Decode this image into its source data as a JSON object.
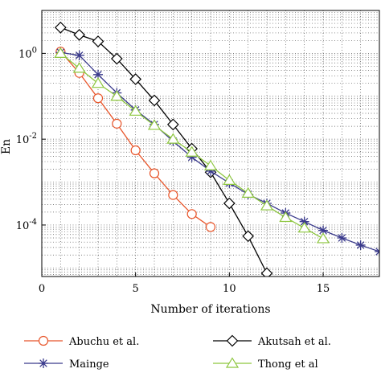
{
  "chart_data": {
    "type": "line",
    "xlabel": "Number of iterations",
    "ylabel": "En",
    "xlim": [
      0,
      18
    ],
    "ylim_log10": [
      -5.2,
      1.0
    ],
    "y_scale": "log",
    "grid": true,
    "x_ticks": [
      {
        "value": 0,
        "label": "0"
      },
      {
        "value": 5,
        "label": "5"
      },
      {
        "value": 10,
        "label": "10"
      },
      {
        "value": 15,
        "label": "15"
      }
    ],
    "y_ticks": [
      {
        "exp": 0,
        "label": "10",
        "sup": "0"
      },
      {
        "exp": -2,
        "label": "10",
        "sup": "-2"
      },
      {
        "exp": -4,
        "label": "10",
        "sup": "-4"
      }
    ],
    "legend_position": "bottom",
    "series": [
      {
        "name": "Abuchu et al.",
        "color": "#e8552a",
        "marker": "circle",
        "x": [
          1,
          2,
          3,
          4,
          5,
          6,
          7,
          8,
          9
        ],
        "y": [
          1.1,
          0.35,
          0.09,
          0.023,
          0.0055,
          0.0016,
          0.0005,
          0.00018,
          9e-05
        ]
      },
      {
        "name": "Akutsah et al.",
        "color": "#000000",
        "marker": "diamond",
        "x": [
          1,
          2,
          3,
          4,
          5,
          6,
          7,
          8,
          9,
          10,
          11,
          12
        ],
        "y": [
          4.0,
          2.7,
          1.9,
          0.75,
          0.25,
          0.08,
          0.022,
          0.006,
          0.0017,
          0.00032,
          5.5e-05,
          7.5e-06
        ]
      },
      {
        "name": "Mainge",
        "color": "#3a3a8c",
        "marker": "star",
        "x": [
          1,
          2,
          3,
          4,
          5,
          6,
          7,
          8,
          9,
          10,
          11,
          12,
          13,
          14,
          15,
          16,
          17,
          18
        ],
        "y": [
          1.05,
          0.9,
          0.32,
          0.12,
          0.048,
          0.022,
          0.009,
          0.0038,
          0.0018,
          0.00095,
          0.00052,
          0.00032,
          0.00019,
          0.00012,
          7.5e-05,
          5e-05,
          3.4e-05,
          2.4e-05
        ]
      },
      {
        "name": "Thong et al",
        "color": "#8dc63f",
        "marker": "triangle",
        "x": [
          1,
          2,
          3,
          4,
          5,
          6,
          7,
          8,
          9,
          10,
          11,
          12,
          13,
          14,
          15
        ],
        "y": [
          1.0,
          0.45,
          0.2,
          0.1,
          0.045,
          0.021,
          0.01,
          0.005,
          0.0024,
          0.0011,
          0.00055,
          0.00028,
          0.00015,
          8.5e-05,
          4.8e-05
        ]
      }
    ]
  }
}
